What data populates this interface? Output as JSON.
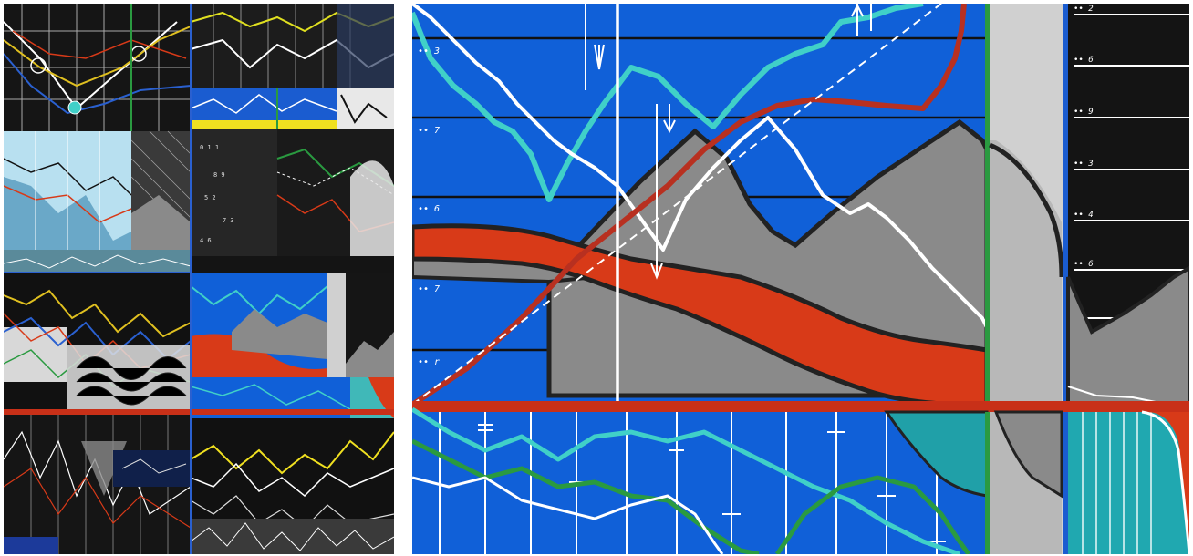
{
  "artwork": {
    "panels": [
      {
        "label": "Left panel: collage of painted chart fragments"
      },
      {
        "label": "Right panel: detail of painted chart with red band and grey peaks"
      }
    ],
    "scribbles": {
      "right_upper_ticks": [
        "•• 3",
        "•• 7",
        "•• 6",
        "•• 7",
        "•• r"
      ],
      "right_side_ticks": [
        "•• 2",
        "•• 6",
        "•• 9",
        "•• 3",
        "•• 4",
        "•• 6"
      ]
    },
    "colors": {
      "blue": "#1060d8",
      "red": "#d83a18",
      "grey": "#8a8a8a",
      "teal": "#40d0c8",
      "black": "#141414",
      "white": "#ffffff",
      "green": "#2a9a40",
      "yellow": "#f0e020"
    }
  }
}
